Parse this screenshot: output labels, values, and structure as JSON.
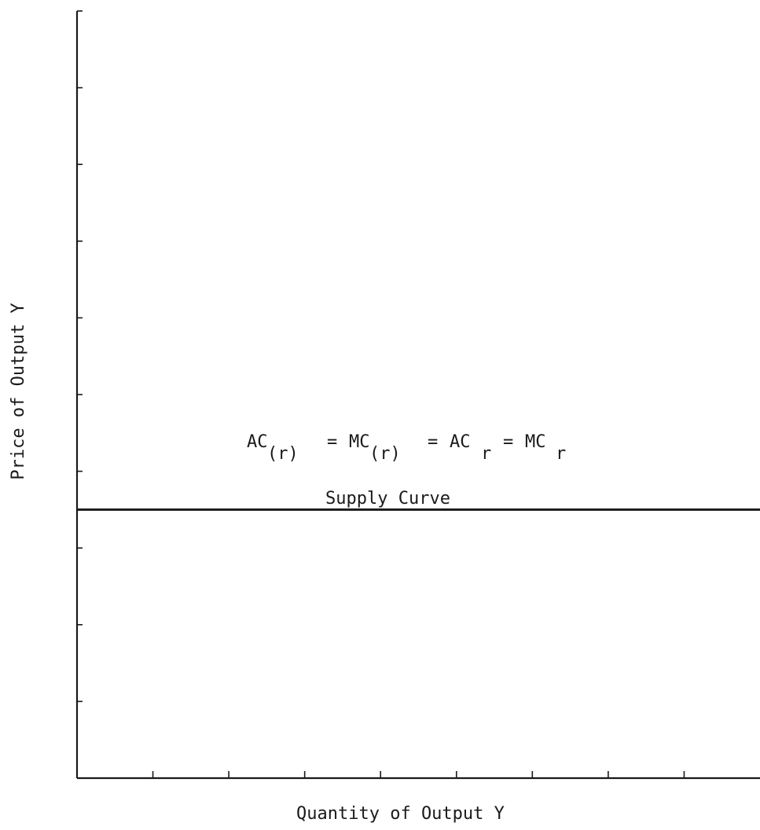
{
  "chart_data": {
    "type": "line",
    "title": "",
    "xlabel": "Quantity of Output Y",
    "ylabel": "Price of Output Y",
    "xlim": [
      0,
      9
    ],
    "ylim": [
      0,
      10
    ],
    "x_ticks": [
      1,
      2,
      3,
      4,
      5,
      6,
      7,
      8
    ],
    "y_ticks": [
      1,
      2,
      3,
      4,
      5,
      6,
      7,
      8,
      9,
      10
    ],
    "grid": false,
    "series": [
      {
        "x": [
          0,
          9
        ],
        "values": [
          3.5,
          3.5
        ],
        "color": "#1a1a1a"
      }
    ],
    "annotations": {
      "curve_equation": {
        "ac_paren_base": "AC",
        "ac_paren_sub": "(r)",
        "eq1": "=",
        "mc_paren_base": "MC",
        "mc_paren_sub": "(r)",
        "eq2": "=",
        "ac_base": "AC",
        "ac_sub": "r",
        "eq3": "=",
        "mc_base": "MC",
        "mc_sub": "r"
      },
      "curve_name": "Supply Curve"
    }
  }
}
